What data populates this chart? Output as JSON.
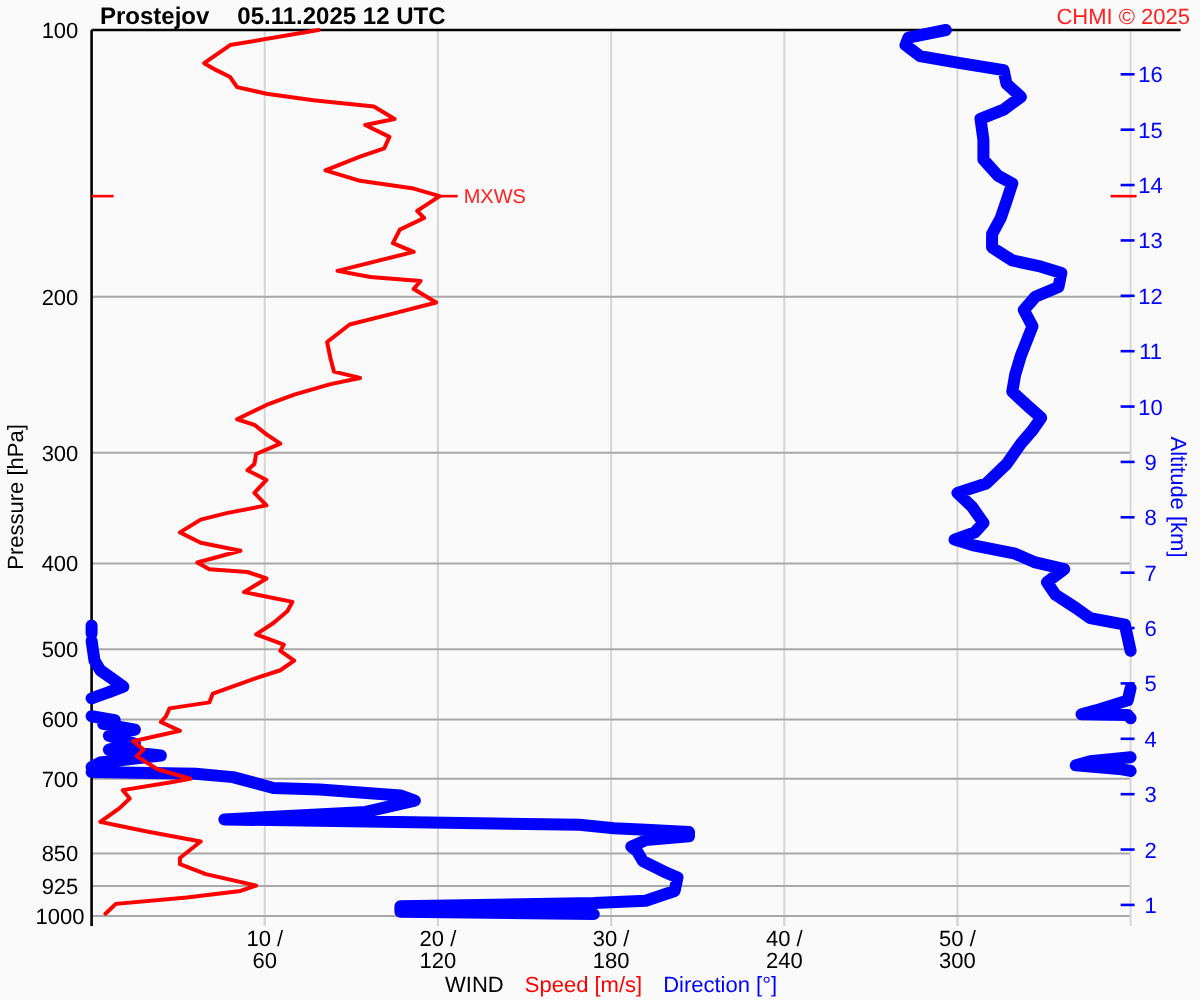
{
  "chart_data": {
    "type": "line",
    "orientation": "horizontal",
    "title": "Prostejov",
    "subtitle": "05.11.2025 12 UTC",
    "xlabel": "WIND",
    "ylabel": "Pressure [hPa]",
    "y2label": "Altitude [km]",
    "annotations": [
      {
        "text": "MXWS",
        "x": 20.1,
        "y": 154
      },
      "CHMI © 2025"
    ],
    "xlim": [
      0,
      60
    ],
    "xticks": [
      {
        "value": 10,
        "label": "10 /"
      },
      {
        "value": 20,
        "label": "20 /"
      },
      {
        "value": 30,
        "label": "30 /"
      },
      {
        "value": 40,
        "label": "40 /"
      },
      {
        "value": 50,
        "label": "50 /"
      }
    ],
    "x2lim": [
      0,
      360
    ],
    "x2ticks": [
      60,
      120,
      180,
      240,
      300
    ],
    "ylim": [
      1000,
      100
    ],
    "yticks": [
      100,
      200,
      300,
      400,
      500,
      600,
      700,
      850,
      925,
      1000
    ],
    "y2lim": [
      0.8,
      16.8
    ],
    "y2ticks": [
      1,
      2,
      3,
      4,
      5,
      6,
      7,
      8,
      9,
      10,
      11,
      12,
      13,
      14,
      15,
      16
    ],
    "log": "y",
    "grid": true,
    "legend": "bottom",
    "line_style": "solid",
    "series": [
      {
        "name": "Speed [m/s]",
        "color": "#ff0000",
        "values": [
          13.1,
          8.0,
          6.5,
          7.2,
          8.0,
          8.4,
          10.1,
          12.8,
          16.3,
          17.5,
          15.8,
          17.2,
          16.9,
          15.5,
          13.5,
          15.5,
          18.6,
          20.1,
          18.8,
          19.2,
          17.8,
          17.4,
          18.6,
          14.2,
          16.1,
          19.0,
          18.6,
          19.9,
          17.4,
          14.9,
          13.6,
          13.8,
          14.0,
          15.5,
          13.8,
          11.7,
          10.1,
          8.4,
          9.4,
          10.1,
          10.9,
          9.5,
          9.4,
          9.0,
          10.1,
          9.4,
          10.1,
          7.8,
          6.3,
          5.1,
          6.3,
          8.6,
          6.1,
          6.8,
          9.0,
          10.1,
          8.8,
          11.6,
          11.3,
          10.5,
          9.5,
          11.1,
          10.9,
          11.7,
          10.9,
          9.5,
          7.0,
          6.8,
          4.5,
          4.3,
          4.0,
          5.1,
          2.4,
          3.0,
          2.6,
          3.8,
          5.7,
          4.5,
          1.8,
          2.2,
          1.6,
          0.5,
          1.3,
          3.2,
          6.3,
          5.1,
          5.1,
          6.6,
          9.5,
          8.6,
          5.5,
          1.4,
          0.8
        ],
        "x": [
          100,
          104,
          109,
          111,
          113,
          116,
          118,
          120,
          122,
          126,
          128,
          132,
          136,
          139,
          144,
          148,
          151,
          154,
          160,
          163,
          168,
          174,
          178,
          187,
          190,
          192,
          196,
          203,
          209,
          215,
          225,
          235,
          243,
          247,
          251,
          258,
          265,
          275,
          279,
          286,
          293,
          301,
          309,
          314,
          322,
          333,
          344,
          351,
          357,
          369,
          379,
          387,
          399,
          406,
          409,
          416,
          431,
          442,
          453,
          467,
          481,
          494,
          502,
          515,
          528,
          539,
          561,
          574,
          583,
          595,
          604,
          618,
          635,
          649,
          660,
          683,
          700,
          707,
          721,
          737,
          756,
          783,
          789,
          803,
          824,
          860,
          874,
          897,
          924,
          937,
          953,
          969,
          994
        ]
      },
      {
        "name": "Direction [°]",
        "color": "#0000ff",
        "axis": "x2",
        "values": [
          296,
          283,
          282,
          287,
          301,
          316,
          317,
          322,
          316,
          308,
          309,
          309,
          314,
          319,
          317,
          315,
          312,
          312,
          319,
          329,
          336,
          335,
          327,
          323,
          326,
          322,
          320,
          319,
          324,
          329,
          326,
          322,
          317,
          310,
          300,
          305,
          309,
          306,
          299,
          306,
          320,
          327,
          337,
          331,
          334,
          341,
          346,
          358,
          359,
          360,
          null,
          0,
          0,
          null,
          0,
          1,
          3,
          11,
          6,
          0,
          null,
          360,
          359,
          348,
          343,
          359,
          360,
          null,
          0,
          8,
          4,
          15,
          6,
          15,
          6,
          24,
          3,
          0,
          null,
          360,
          346,
          341,
          357,
          360,
          null,
          0,
          36,
          49,
          63,
          79,
          107,
          112,
          95,
          46,
          169,
          181,
          192,
          207,
          207,
          192,
          187,
          189,
          191,
          198,
          203,
          202,
          192,
          174,
          107,
          107,
          174
        ],
        "x": [
          100,
          102,
          104,
          107,
          109,
          111,
          115,
          119,
          123,
          126,
          133,
          140,
          146,
          149,
          156,
          163,
          170,
          176,
          182,
          185,
          188,
          195,
          200,
          207,
          216,
          233,
          245,
          256,
          265,
          274,
          283,
          293,
          309,
          325,
          333,
          345,
          360,
          369,
          376,
          382,
          390,
          399,
          406,
          420,
          434,
          449,
          461,
          469,
          485,
          502,
          null,
          470,
          480,
          null,
          489,
          515,
          528,
          551,
          559,
          568,
          null,
          553,
          571,
          586,
          592,
          593,
          598,
          null,
          595,
          601,
          607,
          616,
          626,
          639,
          649,
          659,
          671,
          679,
          null,
          662,
          669,
          676,
          683,
          686,
          null,
          688,
          691,
          697,
          717,
          720,
          731,
          741,
          763,
          778,
          789,
          796,
          799,
          804,
          813,
          821,
          835,
          845,
          867,
          890,
          905,
          937,
          961,
          967,
          975,
          989,
          995
        ]
      }
    ]
  }
}
